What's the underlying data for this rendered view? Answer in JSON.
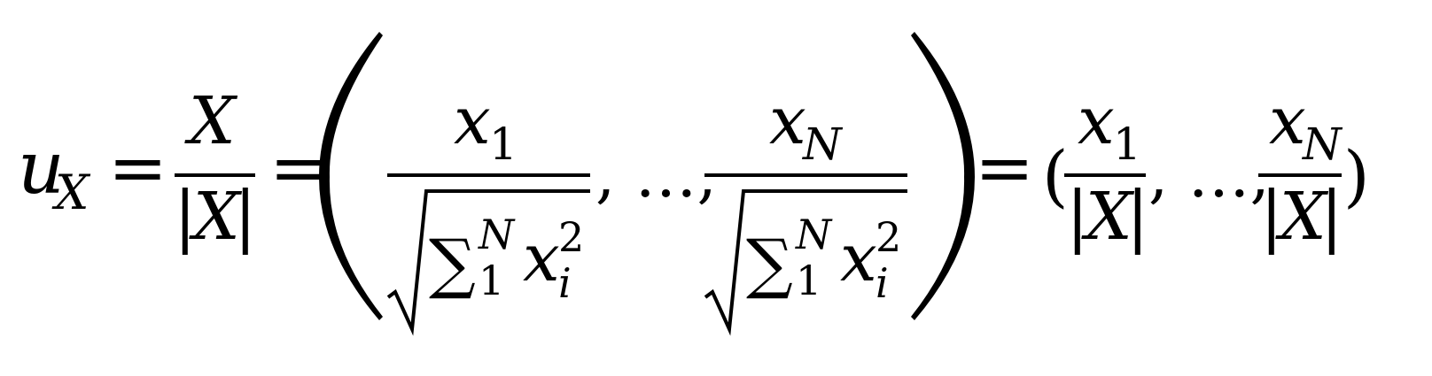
{
  "equation": {
    "lhs": {
      "base": "u",
      "sub": "X"
    },
    "equals": "=",
    "fraction1": {
      "numerator": "X",
      "bar": "|",
      "denominator": "X"
    },
    "vector": {
      "open": "(",
      "close": ")",
      "first": {
        "numerator": {
          "base": "x",
          "sub": "1"
        },
        "radicand": {
          "sum": "∑",
          "lower": "1",
          "upper": "N",
          "term": "x",
          "term_sub": "i",
          "term_sup": "2"
        }
      },
      "separator": ", …, ",
      "last": {
        "numerator": {
          "base": "x",
          "sub": "N"
        },
        "radicand": {
          "sum": "∑",
          "lower": "1",
          "upper": "N",
          "term": "x",
          "term_sub": "i",
          "term_sup": "2"
        }
      }
    },
    "result": {
      "open": "(",
      "close": ")",
      "first": {
        "numerator": {
          "base": "x",
          "sub": "1"
        },
        "denominator": "X"
      },
      "separator": ", …, ",
      "last": {
        "numerator": {
          "base": "x",
          "sub": "N"
        },
        "denominator": "X"
      }
    }
  }
}
